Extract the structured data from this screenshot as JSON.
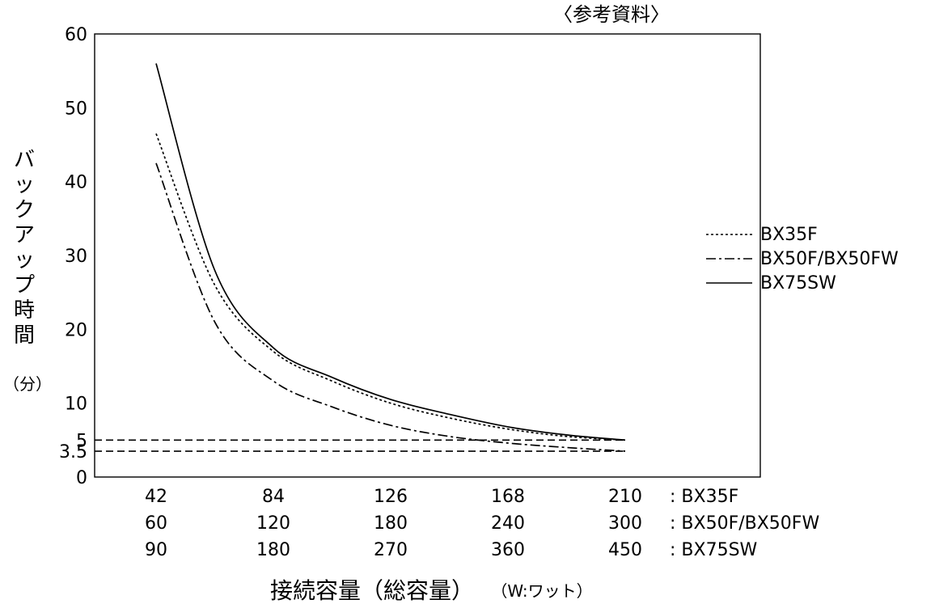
{
  "chart_data": {
    "type": "line",
    "title": "",
    "reference_note": "〈参考資料〉",
    "ylabel": "バックアップ時間",
    "ylabel_unit": "（分）",
    "xlabel": "接続容量（総容量）",
    "xlabel_unit": "（W:ワット）",
    "ylim": [
      0,
      60
    ],
    "y_ticks": [
      "60",
      "50",
      "40",
      "30",
      "20",
      "10",
      "5",
      "3.5",
      "0"
    ],
    "y_tick_values": [
      60,
      50,
      40,
      30,
      20,
      10,
      5,
      3.5,
      0
    ],
    "x_steps": 5,
    "grid": false,
    "legend_position": "right",
    "category_rows": [
      {
        "name": ": BX35F",
        "labels": [
          "42",
          "84",
          "126",
          "168",
          "210"
        ]
      },
      {
        "name": ": BX50F/BX50FW",
        "labels": [
          "60",
          "120",
          "180",
          "240",
          "300"
        ]
      },
      {
        "name": ": BX75SW",
        "labels": [
          "90",
          "180",
          "270",
          "360",
          "450"
        ]
      }
    ],
    "series": [
      {
        "name": "BX35F",
        "style": "dotted",
        "x": [
          1,
          1.5,
          2,
          2.5,
          3,
          3.5,
          4,
          4.5,
          5
        ],
        "values": [
          46.5,
          26,
          17,
          13,
          10,
          8,
          6.5,
          5.5,
          5.0
        ]
      },
      {
        "name": "BX50F/BX50FW",
        "style": "dashdot",
        "x": [
          1,
          1.5,
          2,
          2.5,
          3,
          3.5,
          4,
          4.5,
          5
        ],
        "values": [
          42.5,
          21,
          13,
          9.5,
          7,
          5.5,
          4.6,
          4.0,
          3.5
        ]
      },
      {
        "name": "BX75SW",
        "style": "solid",
        "x": [
          1,
          1.5,
          2,
          2.5,
          3,
          3.5,
          4,
          4.5,
          5
        ],
        "values": [
          56,
          28,
          17.5,
          13.5,
          10.5,
          8.5,
          6.8,
          5.7,
          5.0
        ]
      }
    ],
    "reference_lines": [
      {
        "y": 5,
        "style": "dashed"
      },
      {
        "y": 3.5,
        "style": "dashed"
      }
    ]
  }
}
